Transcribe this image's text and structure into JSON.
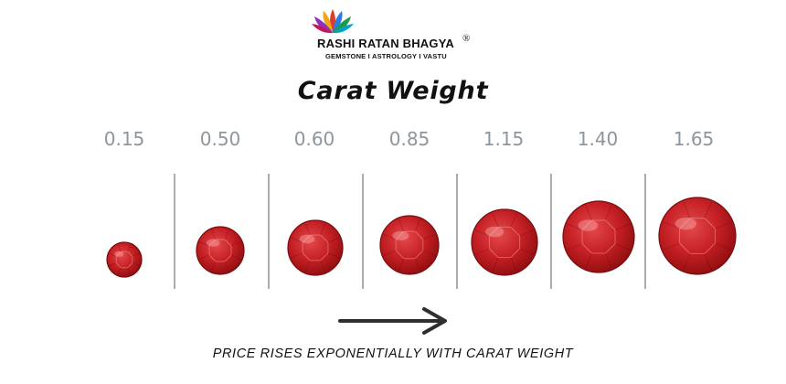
{
  "brand": {
    "name": "RASHI RATAN BHAGYA",
    "registered_mark": "®",
    "tagline": "GEMSTONE I ASTROLOGY I VASTU",
    "logo_icon": "lotus-petals-icon"
  },
  "title": "Carat Weight",
  "weights": [
    "0.15",
    "0.50",
    "0.60",
    "0.85",
    "1.15",
    "1.40",
    "1.65"
  ],
  "gem_icon": "ruby-gem-icon",
  "colors": {
    "gem_dark": "#8f0e10",
    "gem_mid": "#c41f24",
    "gem_light": "#e4494b",
    "label_gray": "#8e969c",
    "divider_gray": "#a9aeb2",
    "arrow": "#2f2f2f"
  },
  "arrow_icon": "right-arrow-icon",
  "caption": "PRICE RISES EXPONENTIALLY WITH CARAT WEIGHT"
}
